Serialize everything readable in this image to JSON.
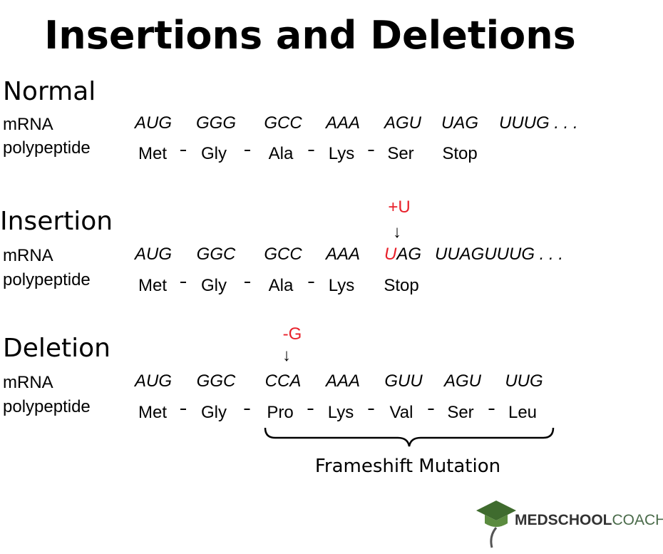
{
  "title": "Insertions and Deletions",
  "sections": [
    {
      "heading": "Normal",
      "mrna_label": "mRNA",
      "polypeptide_label": "polypeptide",
      "codons": [
        "AUG",
        "GGG",
        "GCC",
        "AAA",
        "AGU",
        "UAG",
        "UUUG . . ."
      ],
      "amino_acids": [
        "Met",
        "Gly",
        "Ala",
        "Lys",
        "Ser",
        "Stop"
      ]
    },
    {
      "heading": "Insertion",
      "mutation": "+U",
      "arrow": "↓",
      "mrna_label": "mRNA",
      "polypeptide_label": "polypeptide",
      "codons": [
        "AUG",
        "GGC",
        "GCC",
        "AAA",
        [
          "U",
          "AG"
        ],
        "UUAGUUUG . . ."
      ],
      "amino_acids": [
        "Met",
        "Gly",
        "Ala",
        "Lys",
        "Stop"
      ]
    },
    {
      "heading": "Deletion",
      "mutation": "-G",
      "arrow": "↓",
      "mrna_label": "mRNA",
      "polypeptide_label": "polypeptide",
      "codons": [
        "AUG",
        "GGC",
        "CCA",
        "AAA",
        "GUU",
        "AGU",
        "UUG"
      ],
      "amino_acids": [
        "Met",
        "Gly",
        "Pro",
        "Lys",
        "Val",
        "Ser",
        "Leu"
      ]
    }
  ],
  "bracket_caption": "Frameshift Mutation",
  "logo": {
    "bold": "MEDSCHOOL",
    "light": "COACH"
  }
}
